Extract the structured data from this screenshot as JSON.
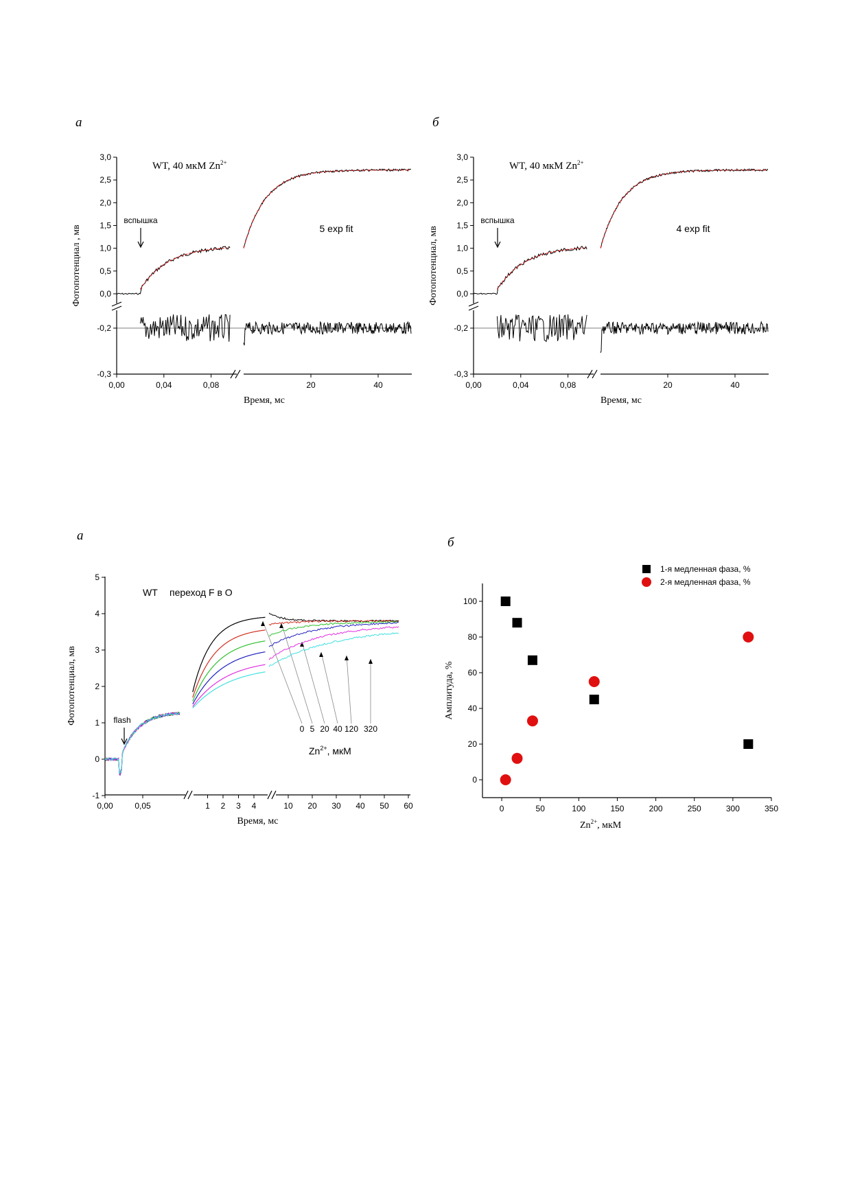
{
  "panel_letters": {
    "top_a": "а",
    "top_b": "б",
    "bot_a": "а",
    "bot_b": "б"
  },
  "chart_data": [
    {
      "type": "line",
      "panel": "а",
      "title": "WT, 40 мкМ Zn",
      "title_sup": "2+",
      "annotation": "5 exp fit",
      "flash_label": "вспышка",
      "xlabel": "Время, мс",
      "ylabel": "Фотопотенциал , мв",
      "x_ticks_left": [
        "0,00",
        "0,04",
        "0,08"
      ],
      "x_ticks_right": [
        "20",
        "40"
      ],
      "y_ticks_top": [
        "3,0",
        "2,5",
        "2,0",
        "1,5",
        "1,0",
        "0,5",
        "0,0"
      ],
      "y_ticks_bottom": [
        "-0,2",
        "-0,3"
      ],
      "series": [
        {
          "role": "signal",
          "fast_phase": [
            [
              0.0,
              0.0
            ],
            [
              0.02,
              0.0
            ],
            [
              0.021,
              0.15
            ],
            [
              0.03,
              0.5
            ],
            [
              0.05,
              0.75
            ],
            [
              0.07,
              0.88
            ],
            [
              0.09,
              0.93
            ]
          ],
          "slow_phase": [
            [
              0,
              1.0
            ],
            [
              5,
              1.9
            ],
            [
              10,
              2.3
            ],
            [
              20,
              2.55
            ],
            [
              30,
              2.65
            ],
            [
              40,
              2.7
            ],
            [
              50,
              2.72
            ]
          ]
        },
        {
          "role": "residual",
          "baseline": -0.2
        }
      ],
      "colors": {
        "data": "#000000",
        "fit": "#d02020"
      }
    },
    {
      "type": "line",
      "panel": "б",
      "title": "WT, 40 мкМ Zn",
      "title_sup": "2+",
      "annotation": "4 exp fit",
      "flash_label": "вспышка",
      "xlabel": "Время, мс",
      "ylabel": "Фотопотенциал, мв",
      "x_ticks_left": [
        "0,00",
        "0,04",
        "0,08"
      ],
      "x_ticks_right": [
        "20",
        "40"
      ],
      "y_ticks_top": [
        "3,0",
        "2,5",
        "2,0",
        "1,5",
        "1,0",
        "0,5",
        "0,0"
      ],
      "y_ticks_bottom": [
        "-0,2",
        "-0,3"
      ],
      "series": [
        {
          "role": "signal",
          "fast_phase": [
            [
              0.0,
              0.0
            ],
            [
              0.02,
              0.0
            ],
            [
              0.021,
              0.2
            ],
            [
              0.03,
              0.5
            ],
            [
              0.05,
              0.75
            ],
            [
              0.07,
              0.88
            ],
            [
              0.09,
              0.93
            ]
          ],
          "slow_phase": [
            [
              0,
              1.0
            ],
            [
              5,
              1.9
            ],
            [
              10,
              2.3
            ],
            [
              20,
              2.55
            ],
            [
              30,
              2.65
            ],
            [
              40,
              2.7
            ],
            [
              50,
              2.72
            ]
          ]
        },
        {
          "role": "residual",
          "baseline": -0.2
        }
      ],
      "colors": {
        "data": "#000000",
        "fit": "#d02020"
      }
    },
    {
      "type": "line",
      "panel": "а",
      "title_wt": "WT",
      "title": "переход F в O",
      "flash_label": "flash",
      "xlabel": "Время, мс",
      "ylabel": "Фотопотенциал, мв",
      "legend_title": "Zn",
      "legend_title_sup": "2+",
      "legend_title_unit": ",  мкМ",
      "x_ticks_1": [
        "0,00",
        "0,05"
      ],
      "x_ticks_2": [
        "1",
        "2",
        "3",
        "4"
      ],
      "x_ticks_3": [
        "10",
        "20",
        "30",
        "40",
        "50",
        "60"
      ],
      "y_ticks": [
        "5",
        "4",
        "3",
        "2",
        "1",
        "0",
        "-1"
      ],
      "series": [
        {
          "name": "0",
          "color": "#000000",
          "mid_end": 3.9,
          "end": 3.8
        },
        {
          "name": "5",
          "color": "#d03020",
          "mid_end": 3.55,
          "end": 3.8
        },
        {
          "name": "20",
          "color": "#30c030",
          "mid_end": 3.25,
          "end": 3.78
        },
        {
          "name": "40",
          "color": "#2020c0",
          "mid_end": 2.95,
          "end": 3.78
        },
        {
          "name": "120",
          "color": "#e030e0",
          "mid_end": 2.6,
          "end": 3.72
        },
        {
          "name": "320",
          "color": "#40e0e0",
          "mid_end": 2.4,
          "end": 3.6
        }
      ]
    },
    {
      "type": "scatter",
      "panel": "б",
      "xlabel": "Zn",
      "xlabel_sup": "2+",
      "xlabel_unit": ", мкМ",
      "ylabel": "Амплитуда, %",
      "xlim": [
        -25,
        350
      ],
      "ylim": [
        -10,
        110
      ],
      "x_ticks": [
        "0",
        "50",
        "100",
        "150",
        "200",
        "250",
        "300",
        "350"
      ],
      "y_ticks": [
        "100",
        "80",
        "60",
        "40",
        "20",
        "0"
      ],
      "series": [
        {
          "name": "1-я медленная фаза, %",
          "marker": "square",
          "color": "#000000",
          "points": [
            [
              5,
              100
            ],
            [
              20,
              88
            ],
            [
              40,
              67
            ],
            [
              120,
              45
            ],
            [
              320,
              20
            ]
          ]
        },
        {
          "name": "2-я медленная фаза, %",
          "marker": "circle",
          "color": "#e01010",
          "points": [
            [
              5,
              0
            ],
            [
              20,
              12
            ],
            [
              40,
              33
            ],
            [
              120,
              55
            ],
            [
              320,
              80
            ]
          ]
        }
      ]
    }
  ]
}
